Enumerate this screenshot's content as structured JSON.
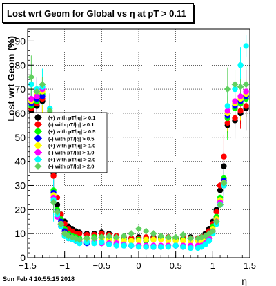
{
  "chart_data": {
    "type": "scatter",
    "title": "Lost wrt Geom for Global vs  η at pT > 0.11",
    "xlabel": "η",
    "ylabel": "Lost wrt Geom (%)",
    "xlim": [
      -1.5,
      1.5
    ],
    "ylim": [
      0,
      95
    ],
    "xticks": [
      -1.5,
      -1,
      -0.5,
      0,
      0.5,
      1,
      1.5
    ],
    "xtick_labels": [
      "−1.5",
      "−1",
      "−0.5",
      "0",
      "0.5",
      "1",
      "1.5"
    ],
    "yticks": [
      0,
      10,
      20,
      30,
      40,
      50,
      60,
      70,
      80,
      90
    ],
    "ytick_labels": [
      "0",
      "10",
      "20",
      "30",
      "40",
      "50",
      "60",
      "70",
      "80",
      "90"
    ],
    "grid": true,
    "legend_position": "middle-left",
    "x": [
      -1.45,
      -1.375,
      -1.3,
      -1.2,
      -1.15,
      -1.1,
      -1.05,
      -1.0,
      -0.95,
      -0.9,
      -0.85,
      -0.8,
      -0.7,
      -0.6,
      -0.5,
      -0.4,
      -0.3,
      -0.2,
      -0.1,
      0.0,
      0.1,
      0.2,
      0.3,
      0.4,
      0.5,
      0.6,
      0.7,
      0.8,
      0.85,
      0.9,
      0.95,
      1.0,
      1.05,
      1.1,
      1.15,
      1.2,
      1.3,
      1.375,
      1.45
    ],
    "series": [
      {
        "name": "(+) with pT/|q| > 0.1",
        "color": "#000000",
        "marker": "circle",
        "values": [
          61,
          63,
          65,
          55,
          35,
          22,
          18,
          15,
          13,
          12,
          11,
          10.5,
          10,
          10,
          10.5,
          10,
          9,
          8.5,
          8,
          8.5,
          8,
          8.5,
          8.5,
          8.5,
          8,
          8,
          8.5,
          8,
          8.5,
          10,
          12,
          15,
          20,
          28,
          38,
          55,
          57,
          60,
          62
        ]
      },
      {
        "name": "(-) with pT/|q| > 0.1",
        "color": "#ff0000",
        "marker": "circle",
        "values": [
          62,
          64,
          66,
          54,
          34,
          25,
          18,
          14,
          12,
          11,
          10,
          10,
          9.5,
          9.5,
          10,
          9.5,
          9,
          8.5,
          8,
          8,
          8.5,
          8,
          8,
          8.5,
          8,
          8,
          8,
          8,
          8.5,
          9,
          11,
          14,
          19,
          30,
          42,
          56,
          58,
          61,
          63
        ]
      },
      {
        "name": "(+) with pT/|q| > 0.5",
        "color": "#00ff00",
        "marker": "circle",
        "values": [
          63,
          65,
          68,
          57,
          28,
          20,
          16,
          12,
          10,
          9,
          8.5,
          8,
          8,
          8.5,
          8.5,
          8,
          8,
          7.5,
          7,
          7.5,
          7,
          7.5,
          8,
          8,
          7.5,
          7.5,
          7,
          7,
          7.5,
          8,
          9.5,
          13,
          17,
          25,
          33,
          58,
          62,
          64,
          66
        ]
      },
      {
        "name": "(-) with pT/|q| > 0.5",
        "color": "#0000ff",
        "marker": "circle",
        "values": [
          64,
          66,
          67,
          58,
          27,
          19,
          15,
          11,
          9,
          8,
          7,
          6.5,
          6,
          6.5,
          6,
          6,
          5.5,
          5,
          5,
          5,
          4.5,
          4.5,
          4.5,
          5,
          5,
          4.5,
          4.5,
          4.5,
          5,
          6,
          8,
          11,
          16,
          24,
          32,
          59,
          63,
          65,
          67
        ]
      },
      {
        "name": "(+) with pT/|q| > 1.0",
        "color": "#ffff00",
        "marker": "circle",
        "values": [
          65,
          68,
          69,
          60,
          26,
          18,
          14,
          10,
          8.5,
          8,
          7.5,
          7,
          7.5,
          7.5,
          8,
          7.5,
          7,
          7,
          7,
          7,
          7.5,
          7.5,
          7.5,
          7,
          7,
          7,
          7,
          7,
          7,
          8,
          9,
          12,
          16,
          24,
          31,
          60,
          64,
          66,
          68
        ]
      },
      {
        "name": "(-) with pT/|q| > 1.0",
        "color": "#ff00ff",
        "marker": "circle",
        "values": [
          66,
          67,
          70,
          59,
          25,
          17,
          13,
          9.5,
          8,
          7.5,
          7,
          6.5,
          6.5,
          6.5,
          6,
          6,
          6,
          5.5,
          5,
          5,
          5,
          5,
          5,
          5,
          5,
          5,
          5,
          5,
          5,
          6,
          8,
          11,
          15,
          23,
          30,
          61,
          65,
          67,
          69
        ]
      },
      {
        "name": "(+) with pT/|q| > 2.0",
        "color": "#00ffff",
        "marker": "circle",
        "values": [
          72,
          70,
          71,
          62,
          24,
          18,
          13,
          9,
          8,
          7.5,
          7,
          6,
          6.5,
          6,
          6.5,
          5.5,
          5,
          5,
          5,
          4.5,
          4.5,
          4.5,
          4.5,
          4.5,
          5,
          4.5,
          4,
          4,
          4.5,
          5.5,
          7,
          10,
          14,
          22,
          30,
          63,
          70,
          80,
          88
        ]
      },
      {
        "name": "(-) with pT/|q| > 2.0",
        "color": "#60d060",
        "marker": "diamond",
        "values": [
          75,
          69,
          72,
          61,
          23,
          19,
          14,
          10,
          9,
          8.5,
          8,
          7.5,
          8,
          8,
          8.5,
          9,
          8.5,
          9,
          10,
          12,
          11,
          10,
          9,
          8.5,
          8.5,
          9.5,
          8,
          8,
          8.5,
          9,
          10,
          11,
          15,
          22,
          31,
          70,
          72,
          71,
          72
        ]
      }
    ]
  },
  "footer": {
    "timestamp": "Sun Feb  4 10:55:15 2018"
  }
}
